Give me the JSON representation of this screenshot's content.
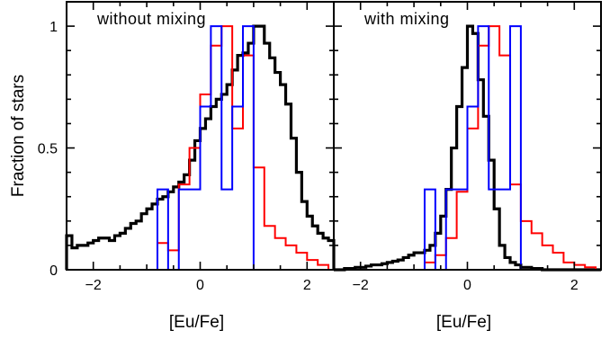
{
  "chart_data": {
    "type": "line",
    "ylabel": "Fraction of stars",
    "xlabel": "[Eu/Fe]",
    "ylim": [
      0,
      1.1
    ],
    "xlim": [
      -2.5,
      2.5
    ],
    "xticks": [
      -2,
      0,
      2
    ],
    "yticks": [
      0,
      0.5,
      1
    ],
    "ytick_labels": [
      "0",
      "0.5",
      "1"
    ],
    "xtick_labels": [
      "−2",
      "0",
      "2"
    ],
    "bin_width": 0.1,
    "colors": {
      "black": "#000000",
      "red": "#ff0000",
      "blue": "#0000ff"
    },
    "panels": [
      {
        "title": "without mixing",
        "series": [
          {
            "color": "#000000",
            "width": 3.2,
            "x": [
              -2.5,
              -2.4,
              -2.3,
              -2.2,
              -2.1,
              -2.0,
              -1.9,
              -1.8,
              -1.7,
              -1.6,
              -1.5,
              -1.4,
              -1.3,
              -1.2,
              -1.1,
              -1.0,
              -0.9,
              -0.8,
              -0.7,
              -0.6,
              -0.5,
              -0.4,
              -0.3,
              -0.2,
              -0.1,
              0.0,
              0.1,
              0.2,
              0.3,
              0.4,
              0.5,
              0.6,
              0.7,
              0.8,
              0.9,
              1.0,
              1.1,
              1.2,
              1.3,
              1.4,
              1.5,
              1.6,
              1.7,
              1.8,
              1.9,
              2.0,
              2.1,
              2.2,
              2.3,
              2.4
            ],
            "y": [
              0.14,
              0.09,
              0.1,
              0.1,
              0.11,
              0.12,
              0.13,
              0.13,
              0.12,
              0.14,
              0.15,
              0.17,
              0.19,
              0.2,
              0.23,
              0.25,
              0.27,
              0.29,
              0.3,
              0.32,
              0.34,
              0.36,
              0.39,
              0.45,
              0.53,
              0.58,
              0.62,
              0.67,
              0.7,
              0.72,
              0.76,
              0.82,
              0.88,
              0.89,
              0.93,
              1.0,
              1.0,
              0.93,
              0.87,
              0.81,
              0.76,
              0.68,
              0.54,
              0.4,
              0.28,
              0.22,
              0.18,
              0.15,
              0.13,
              0.12
            ]
          },
          {
            "color": "#ff0000",
            "width": 2,
            "x": [
              -0.8,
              -0.6,
              -0.4,
              -0.2,
              0.0,
              0.2,
              0.4,
              0.6,
              0.8,
              1.0,
              1.2,
              1.4,
              1.6,
              1.8,
              2.0,
              2.2
            ],
            "y": [
              0.11,
              0.08,
              0.35,
              0.5,
              0.72,
              0.92,
              1.0,
              0.58,
              0.88,
              0.42,
              0.18,
              0.13,
              0.1,
              0.07,
              0.04,
              0.02
            ]
          },
          {
            "color": "#0000ff",
            "width": 2,
            "x": [
              -0.8,
              -0.6,
              -0.4,
              -0.2,
              0.0,
              0.2,
              0.4,
              0.6,
              0.8,
              1.0
            ],
            "y": [
              0.33,
              0,
              0.33,
              0.33,
              0.67,
              1.0,
              0.33,
              0.67,
              1.0,
              0
            ]
          }
        ]
      },
      {
        "title": "with mixing",
        "series": [
          {
            "color": "#000000",
            "width": 3.2,
            "x": [
              -2.5,
              -2.4,
              -2.3,
              -2.2,
              -2.1,
              -2.0,
              -1.9,
              -1.8,
              -1.7,
              -1.6,
              -1.5,
              -1.4,
              -1.3,
              -1.2,
              -1.1,
              -1.0,
              -0.9,
              -0.8,
              -0.7,
              -0.6,
              -0.5,
              -0.4,
              -0.3,
              -0.2,
              -0.1,
              0.0,
              0.1,
              0.2,
              0.3,
              0.4,
              0.5,
              0.6,
              0.7,
              0.8,
              0.9,
              1.0,
              1.1,
              1.2,
              1.3,
              1.4,
              1.5,
              1.6,
              1.7,
              1.8,
              1.9,
              2.0,
              2.1,
              2.2,
              2.3,
              2.4
            ],
            "y": [
              0.0,
              0.0,
              0.005,
              0.005,
              0.01,
              0.01,
              0.015,
              0.02,
              0.02,
              0.025,
              0.03,
              0.035,
              0.04,
              0.05,
              0.06,
              0.07,
              0.07,
              0.08,
              0.1,
              0.15,
              0.22,
              0.33,
              0.5,
              0.67,
              0.83,
              1.0,
              0.97,
              0.78,
              0.63,
              0.45,
              0.25,
              0.1,
              0.05,
              0.03,
              0.02,
              0.01,
              0.01,
              0.005,
              0.005,
              0,
              0,
              0,
              0,
              0,
              0,
              0,
              0,
              0,
              0,
              0
            ]
          },
          {
            "color": "#ff0000",
            "width": 2,
            "x": [
              -0.8,
              -0.6,
              -0.4,
              -0.2,
              0.0,
              0.2,
              0.4,
              0.6,
              0.8,
              1.0,
              1.2,
              1.4,
              1.6,
              1.8,
              2.0,
              2.2
            ],
            "y": [
              0.03,
              0.06,
              0.13,
              0.32,
              0.58,
              0.92,
              1.0,
              0.88,
              0.35,
              0.2,
              0.15,
              0.1,
              0.07,
              0.03,
              0.02,
              0.01
            ]
          },
          {
            "color": "#0000ff",
            "width": 2,
            "x": [
              -0.8,
              -0.6,
              -0.4,
              -0.2,
              0.0,
              0.2,
              0.4,
              0.6,
              0.8,
              1.0
            ],
            "y": [
              0.33,
              0,
              0.33,
              0.33,
              0.67,
              1.0,
              0.33,
              0.33,
              1.0,
              0
            ]
          }
        ]
      }
    ]
  }
}
